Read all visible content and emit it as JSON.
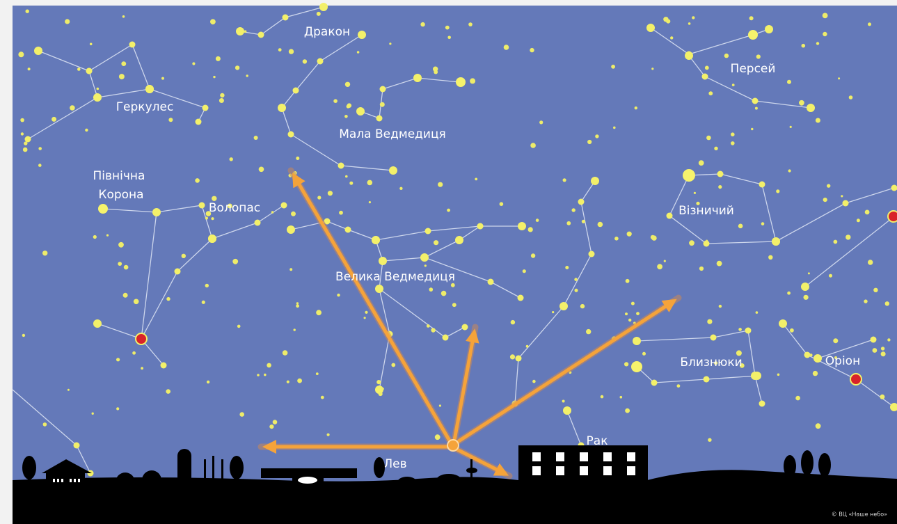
{
  "labels": {
    "draco": "Дракон",
    "perseus": "Персей",
    "hercules": "Геркулес",
    "ursa_minor": "Мала Ведмедиця",
    "corona_borealis": [
      "Північна",
      "Корона"
    ],
    "bootes": "Волопас",
    "auriga": "Візничий",
    "ursa_major": "Велика Ведмедиця",
    "gemini": "Близнюки",
    "orion": "Оріон",
    "cancer": "Рак",
    "leo": "Лев"
  },
  "credit": "© ВЦ «Наше небо»"
}
